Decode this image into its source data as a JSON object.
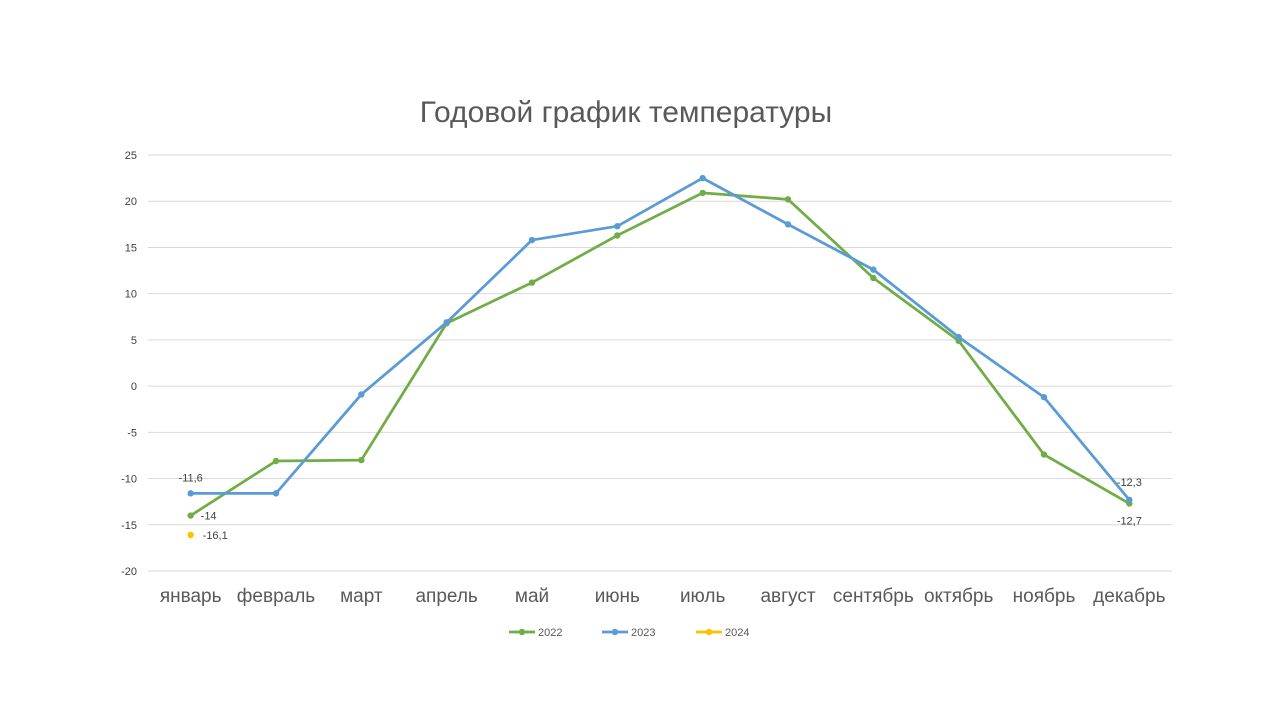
{
  "chart_data": {
    "type": "line",
    "title": "Годовой график температуры",
    "categories": [
      "январь",
      "февраль",
      "март",
      "апрель",
      "май",
      "июнь",
      "июль",
      "август",
      "сентябрь",
      "октябрь",
      "ноябрь",
      "декабрь"
    ],
    "ylim": [
      -20,
      25
    ],
    "yticks": [
      "25",
      "20",
      "15",
      "10",
      "5",
      "0",
      "-5",
      "-10",
      "-15",
      "-20"
    ],
    "grid": true,
    "legend_position": "bottom",
    "series": [
      {
        "name": "2022",
        "color": "#70ad47",
        "values": [
          -14,
          -8.1,
          -8,
          6.8,
          11.2,
          16.3,
          20.9,
          20.2,
          11.7,
          4.9,
          -7.4,
          -12.7
        ]
      },
      {
        "name": "2023",
        "color": "#5b9bd5",
        "values": [
          -11.6,
          -11.6,
          -0.9,
          6.9,
          15.8,
          17.3,
          22.5,
          17.5,
          12.6,
          5.3,
          -1.2,
          -12.3
        ]
      },
      {
        "name": "2024",
        "color": "#ffc000",
        "values": [
          -16.1,
          null,
          null,
          null,
          null,
          null,
          null,
          null,
          null,
          null,
          null,
          null
        ]
      }
    ],
    "data_labels": [
      {
        "series": "2023",
        "category": "январь",
        "text": "-11,6"
      },
      {
        "series": "2022",
        "category": "январь",
        "text": "-14"
      },
      {
        "series": "2024",
        "category": "январь",
        "text": "-16,1"
      },
      {
        "series": "2023",
        "category": "декабрь",
        "text": "-12,3"
      },
      {
        "series": "2022",
        "category": "декабрь",
        "text": "-12,7"
      }
    ]
  }
}
